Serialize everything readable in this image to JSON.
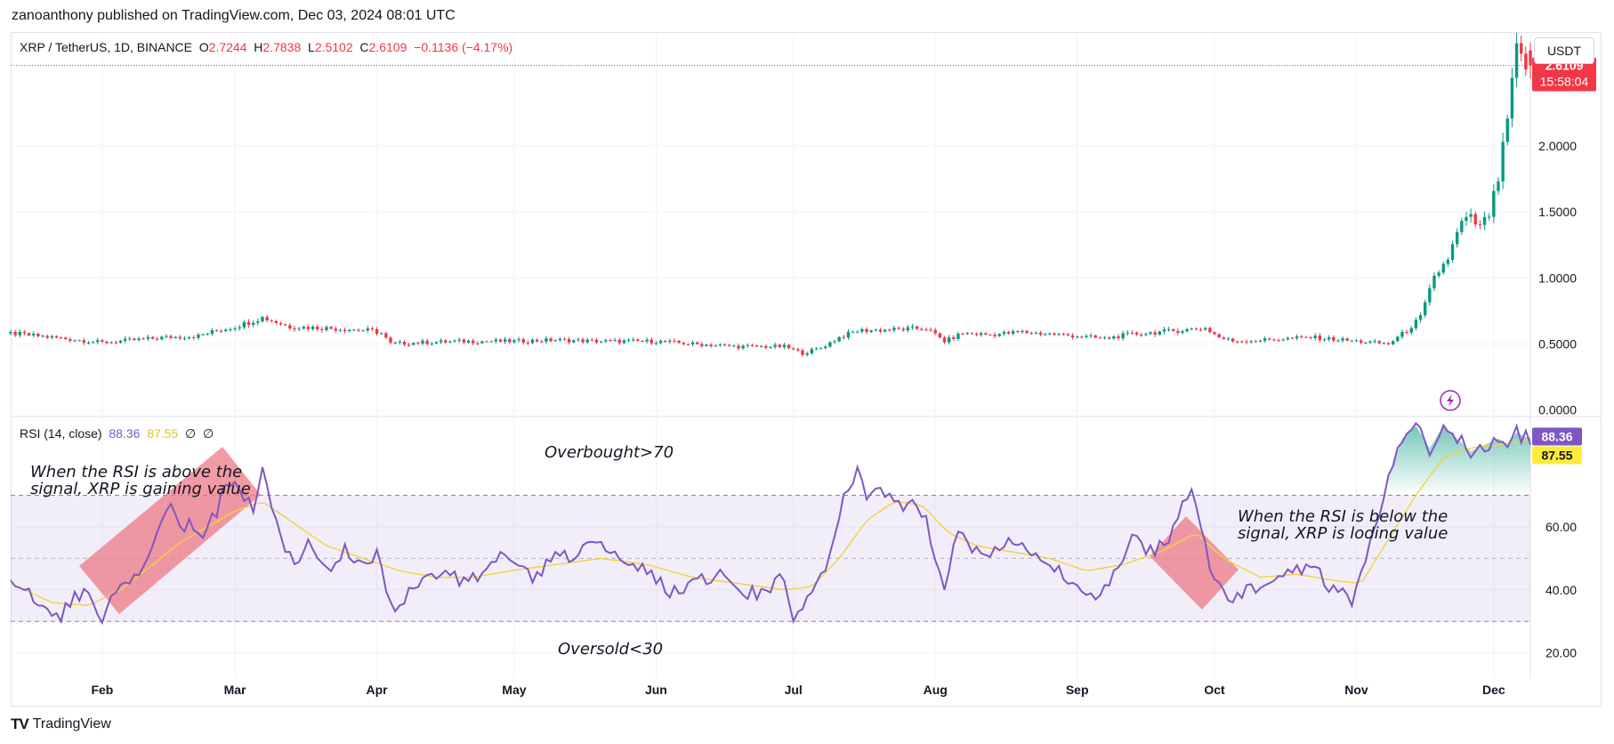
{
  "publisher": "zanoanthony published on TradingView.com, Dec 03, 2024 08:01 UTC",
  "brand": {
    "logo": "TV",
    "name": "TradingView",
    "icon": "tradingview-logo-icon"
  },
  "currency": "USDT",
  "symbol_legend": {
    "title": "XRP / TetherUS, 1D, BINANCE",
    "open_label": "O",
    "open": "2.7244",
    "high_label": "H",
    "high": "2.7838",
    "low_label": "L",
    "low": "2.5102",
    "close_label": "C",
    "close": "2.6109",
    "change": "−0.1136 (−4.17%)"
  },
  "price_tag": {
    "price": "2.6109",
    "countdown": "15:58:04",
    "color": "#f23645"
  },
  "rsi_legend": {
    "title": "RSI (14, close)",
    "rsi": "88.36",
    "signal": "87.55",
    "v1": "∅",
    "v2": "∅"
  },
  "rsi_tags": {
    "rsi": "88.36",
    "signal": "87.55"
  },
  "colors": {
    "up": "#089981",
    "down": "#f23645",
    "rsi": "#7e57c2",
    "signal": "#f0d43c",
    "band": "#7e57c2",
    "highlight": "#ec7a86"
  },
  "annotations": {
    "overbought": "Overbought>70",
    "oversold": "Oversold<30",
    "note_left_1": "When the RSI is above the",
    "note_left_2": "signal, XRP is gaining value",
    "note_right_1": "When the RSI is below the",
    "note_right_2": "signal, XRP is loding value"
  },
  "chart_data": [
    {
      "type": "candlestick",
      "title": "XRP / TetherUS, 1D, BINANCE",
      "y_ticks": [
        "0.0000",
        "0.5000",
        "1.0000",
        "1.5000",
        "2.0000"
      ],
      "ylim": [
        -0.05,
        2.85
      ],
      "x_ticks": [
        "Feb",
        "Mar",
        "Apr",
        "May",
        "Jun",
        "Jul",
        "Aug",
        "Sep",
        "Oct",
        "Nov",
        "Dec"
      ],
      "x_tick_days": [
        31,
        60,
        91,
        121,
        152,
        182,
        213,
        244,
        274,
        305,
        335
      ],
      "x_range_days": [
        11,
        343
      ],
      "price_anchors": [
        [
          11,
          0.58
        ],
        [
          20,
          0.55
        ],
        [
          31,
          0.51
        ],
        [
          45,
          0.55
        ],
        [
          52,
          0.56
        ],
        [
          56,
          0.6
        ],
        [
          60,
          0.63
        ],
        [
          66,
          0.7
        ],
        [
          72,
          0.63
        ],
        [
          80,
          0.62
        ],
        [
          90,
          0.6
        ],
        [
          92,
          0.58
        ],
        [
          94,
          0.5
        ],
        [
          100,
          0.51
        ],
        [
          110,
          0.52
        ],
        [
          121,
          0.52
        ],
        [
          130,
          0.53
        ],
        [
          140,
          0.52
        ],
        [
          152,
          0.52
        ],
        [
          160,
          0.5
        ],
        [
          170,
          0.48
        ],
        [
          180,
          0.48
        ],
        [
          184,
          0.43
        ],
        [
          188,
          0.47
        ],
        [
          192,
          0.55
        ],
        [
          196,
          0.6
        ],
        [
          205,
          0.61
        ],
        [
          211,
          0.62
        ],
        [
          215,
          0.52
        ],
        [
          219,
          0.58
        ],
        [
          225,
          0.57
        ],
        [
          232,
          0.59
        ],
        [
          240,
          0.57
        ],
        [
          244,
          0.56
        ],
        [
          250,
          0.54
        ],
        [
          255,
          0.57
        ],
        [
          262,
          0.59
        ],
        [
          272,
          0.62
        ],
        [
          275,
          0.55
        ],
        [
          278,
          0.52
        ],
        [
          285,
          0.53
        ],
        [
          295,
          0.55
        ],
        [
          305,
          0.52
        ],
        [
          312,
          0.5
        ],
        [
          316,
          0.6
        ],
        [
          319,
          0.7
        ],
        [
          322,
          1.0
        ],
        [
          325,
          1.15
        ],
        [
          328,
          1.42
        ],
        [
          330,
          1.45
        ],
        [
          332,
          1.38
        ],
        [
          334,
          1.48
        ],
        [
          336,
          1.75
        ],
        [
          338,
          2.2
        ],
        [
          340,
          2.72
        ],
        [
          342,
          2.61
        ]
      ],
      "last_candle": {
        "open": 2.7244,
        "high": 2.7838,
        "low": 2.5102,
        "close": 2.6109
      }
    },
    {
      "type": "line",
      "title": "RSI (14, close)",
      "series": [
        {
          "name": "RSI",
          "values": "rsi_anchors"
        },
        {
          "name": "Signal",
          "values": "signal_anchors"
        }
      ],
      "y_ticks": [
        "20.00",
        "40.00",
        "60.00"
      ],
      "ylim": [
        12,
        95
      ],
      "bands": {
        "upper": 70,
        "middle": 50,
        "lower": 30
      },
      "rsi_anchors": [
        [
          11,
          45
        ],
        [
          14,
          40
        ],
        [
          18,
          34
        ],
        [
          22,
          30
        ],
        [
          25,
          40
        ],
        [
          28,
          37
        ],
        [
          31,
          32
        ],
        [
          34,
          38
        ],
        [
          37,
          44
        ],
        [
          40,
          48
        ],
        [
          43,
          58
        ],
        [
          46,
          68
        ],
        [
          48,
          60
        ],
        [
          50,
          62
        ],
        [
          53,
          56
        ],
        [
          56,
          65
        ],
        [
          58,
          74
        ],
        [
          60,
          76
        ],
        [
          62,
          70
        ],
        [
          64,
          66
        ],
        [
          66,
          78
        ],
        [
          68,
          66
        ],
        [
          70,
          55
        ],
        [
          73,
          50
        ],
        [
          76,
          54
        ],
        [
          80,
          46
        ],
        [
          84,
          52
        ],
        [
          88,
          49
        ],
        [
          91,
          52
        ],
        [
          93,
          40
        ],
        [
          95,
          31
        ],
        [
          97,
          38
        ],
        [
          100,
          40
        ],
        [
          103,
          45
        ],
        [
          106,
          48
        ],
        [
          110,
          42
        ],
        [
          114,
          46
        ],
        [
          118,
          50
        ],
        [
          121,
          48
        ],
        [
          125,
          44
        ],
        [
          130,
          50
        ],
        [
          135,
          52
        ],
        [
          140,
          56
        ],
        [
          145,
          50
        ],
        [
          150,
          46
        ],
        [
          155,
          40
        ],
        [
          160,
          42
        ],
        [
          165,
          45
        ],
        [
          170,
          40
        ],
        [
          175,
          38
        ],
        [
          180,
          45
        ],
        [
          182,
          28
        ],
        [
          184,
          36
        ],
        [
          187,
          40
        ],
        [
          190,
          50
        ],
        [
          193,
          72
        ],
        [
          196,
          78
        ],
        [
          198,
          70
        ],
        [
          201,
          72
        ],
        [
          205,
          66
        ],
        [
          208,
          68
        ],
        [
          211,
          64
        ],
        [
          213,
          47
        ],
        [
          215,
          40
        ],
        [
          218,
          60
        ],
        [
          221,
          52
        ],
        [
          225,
          50
        ],
        [
          230,
          56
        ],
        [
          235,
          50
        ],
        [
          240,
          46
        ],
        [
          244,
          42
        ],
        [
          248,
          38
        ],
        [
          252,
          45
        ],
        [
          256,
          56
        ],
        [
          260,
          52
        ],
        [
          264,
          55
        ],
        [
          267,
          66
        ],
        [
          269,
          72
        ],
        [
          271,
          62
        ],
        [
          273,
          48
        ],
        [
          275,
          40
        ],
        [
          278,
          37
        ],
        [
          282,
          40
        ],
        [
          286,
          42
        ],
        [
          290,
          45
        ],
        [
          295,
          48
        ],
        [
          300,
          40
        ],
        [
          304,
          36
        ],
        [
          306,
          44
        ],
        [
          309,
          60
        ],
        [
          312,
          75
        ],
        [
          315,
          88
        ],
        [
          318,
          92
        ],
        [
          321,
          85
        ],
        [
          324,
          92
        ],
        [
          327,
          88
        ],
        [
          330,
          84
        ],
        [
          333,
          86
        ],
        [
          336,
          88
        ],
        [
          338,
          86
        ],
        [
          340,
          90
        ],
        [
          342,
          88.36
        ]
      ],
      "signal_anchors": [
        [
          11,
          42
        ],
        [
          20,
          36
        ],
        [
          28,
          35
        ],
        [
          35,
          40
        ],
        [
          42,
          48
        ],
        [
          48,
          55
        ],
        [
          54,
          60
        ],
        [
          60,
          65
        ],
        [
          66,
          68
        ],
        [
          72,
          62
        ],
        [
          80,
          54
        ],
        [
          88,
          50
        ],
        [
          96,
          46
        ],
        [
          104,
          44
        ],
        [
          112,
          44
        ],
        [
          120,
          46
        ],
        [
          130,
          48
        ],
        [
          140,
          50
        ],
        [
          150,
          48
        ],
        [
          160,
          44
        ],
        [
          170,
          42
        ],
        [
          180,
          40
        ],
        [
          186,
          41
        ],
        [
          192,
          50
        ],
        [
          198,
          62
        ],
        [
          204,
          68
        ],
        [
          210,
          67
        ],
        [
          216,
          58
        ],
        [
          222,
          54
        ],
        [
          230,
          52
        ],
        [
          238,
          50
        ],
        [
          246,
          46
        ],
        [
          254,
          48
        ],
        [
          262,
          52
        ],
        [
          270,
          58
        ],
        [
          276,
          50
        ],
        [
          284,
          44
        ],
        [
          292,
          45
        ],
        [
          300,
          43
        ],
        [
          306,
          42
        ],
        [
          312,
          56
        ],
        [
          318,
          70
        ],
        [
          324,
          82
        ],
        [
          330,
          85
        ],
        [
          336,
          86
        ],
        [
          342,
          87.55
        ]
      ]
    }
  ]
}
